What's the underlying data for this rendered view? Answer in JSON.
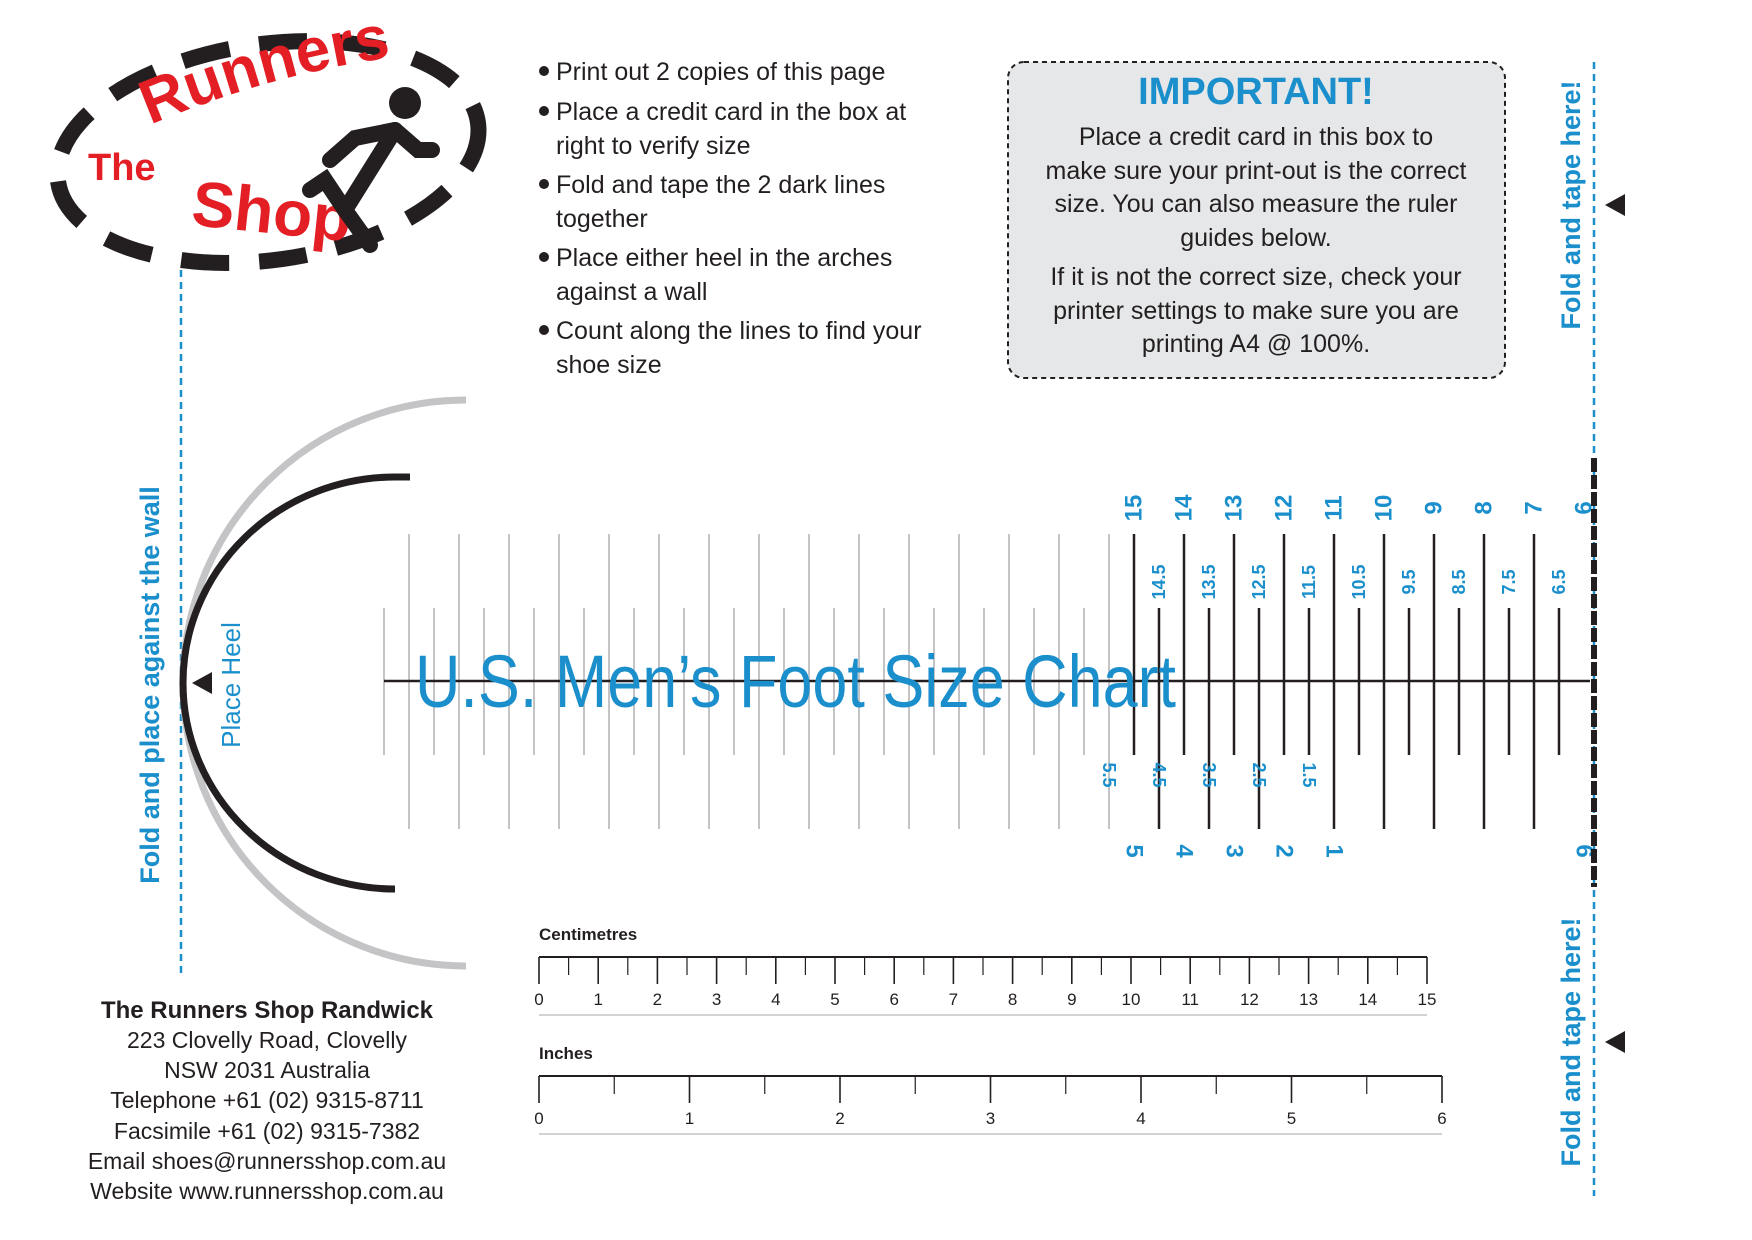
{
  "logo": {
    "word_the": "The",
    "word_runners": "Runners",
    "word_shop": "Shop"
  },
  "instructions": [
    [
      "Print out 2 copies of this page"
    ],
    [
      "Place a credit card in the box at",
      "right to verify size"
    ],
    [
      "Fold and tape the 2 dark lines",
      "together"
    ],
    [
      "Place either heel in the arches",
      "against a wall"
    ],
    [
      "Count along the lines to find your",
      "shoe size"
    ]
  ],
  "important": {
    "heading": "IMPORTANT!",
    "para1": [
      "Place a credit card in this box to",
      "make sure your print-out is the correct",
      "size. You can also measure the ruler",
      "guides below."
    ],
    "para2": [
      "If it is not the correct size, check your",
      "printer settings to make sure you are",
      "printing A4 @ 100%."
    ]
  },
  "fold_tape_label": "Fold and tape here!",
  "wall_label": "Fold and place against the wall",
  "heel_label": "Place Heel",
  "chart_title": "U.S. Men’s Foot Size Chart",
  "sizes": {
    "upper_whole": [
      "15",
      "14",
      "13",
      "12",
      "11",
      "10",
      "9",
      "8",
      "7",
      "6"
    ],
    "upper_half": [
      "14.5",
      "13.5",
      "12.5",
      "11.5",
      "10.5",
      "9.5",
      "8.5",
      "7.5",
      "6.5"
    ],
    "lower_half": [
      "1.5",
      "2.5",
      "3.5",
      "4.5",
      "5.5"
    ],
    "lower_whole": [
      "1",
      "2",
      "3",
      "4",
      "5",
      "6"
    ]
  },
  "rulers": {
    "cm": {
      "label": "Centimetres",
      "max": 15
    },
    "inch": {
      "label": "Inches",
      "max": 6
    }
  },
  "address": {
    "name": "The Runners Shop Randwick",
    "lines": [
      "223 Clovelly Road, Clovelly",
      "NSW 2031 Australia",
      "Telephone +61 (02) 9315-8711",
      "Facsimile +61 (02) 9315-7382",
      "Email shoes@runnersshop.com.au",
      "Website www.runnersshop.com.au"
    ]
  },
  "colors": {
    "accent_blue": "#1a8fcc",
    "logo_red": "#e31e24",
    "ink": "#231f20",
    "guide_grey": "#c4c4c6",
    "box_fill": "#e6e7e8"
  }
}
